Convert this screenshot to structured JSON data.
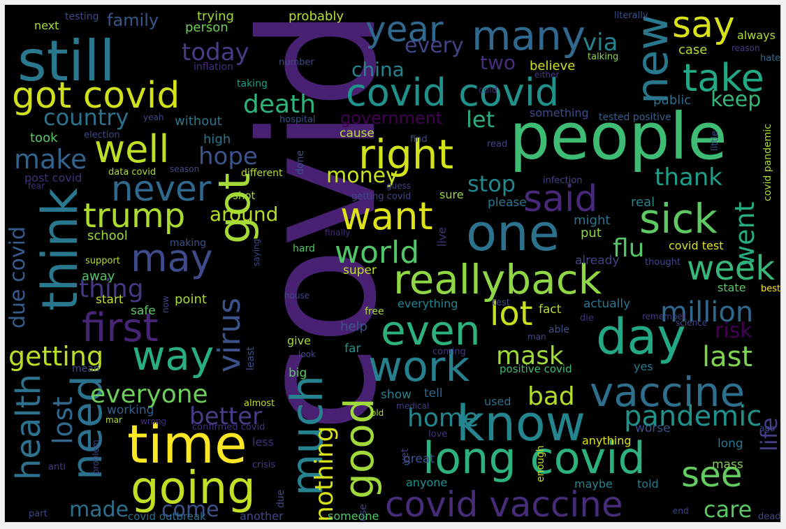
{
  "wordcloud": {
    "background": "#000000",
    "palette": "viridis",
    "words": [
      {
        "text": "covid",
        "color": "#482173"
      },
      {
        "text": "people",
        "color": "#3fbc73"
      },
      {
        "text": "still",
        "color": "#2a788e"
      },
      {
        "text": "many",
        "color": "#31688e"
      },
      {
        "text": "year",
        "color": "#31688e"
      },
      {
        "text": "say",
        "color": "#d8e219"
      },
      {
        "text": "new",
        "color": "#2a788e"
      },
      {
        "text": "got covid",
        "color": "#d0e11c"
      },
      {
        "text": "covid covid",
        "color": "#21918c"
      },
      {
        "text": "take",
        "color": "#22a884"
      },
      {
        "text": "today",
        "color": "#433e85"
      },
      {
        "text": "every",
        "color": "#414487"
      },
      {
        "text": "via",
        "color": "#26828e"
      },
      {
        "text": "china",
        "color": "#25848e"
      },
      {
        "text": "two",
        "color": "#472d7b"
      },
      {
        "text": "death",
        "color": "#2fb47c"
      },
      {
        "text": "country",
        "color": "#2c728e"
      },
      {
        "text": "keep",
        "color": "#35b779"
      },
      {
        "text": "government",
        "color": "#440154"
      },
      {
        "text": "let",
        "color": "#29af7f"
      },
      {
        "text": "well",
        "color": "#bddf26"
      },
      {
        "text": "right",
        "color": "#d2e21b"
      },
      {
        "text": "think",
        "color": "#2a788e"
      },
      {
        "text": "make",
        "color": "#33638d"
      },
      {
        "text": "hope",
        "color": "#3b528b"
      },
      {
        "text": "never",
        "color": "#31688e"
      },
      {
        "text": "money",
        "color": "#cae11f"
      },
      {
        "text": "stop",
        "color": "#24868e"
      },
      {
        "text": "thank",
        "color": "#1f9e89"
      },
      {
        "text": "trump",
        "color": "#addc30"
      },
      {
        "text": "got",
        "color": "#a5db36"
      },
      {
        "text": "want",
        "color": "#dde318"
      },
      {
        "text": "said",
        "color": "#482878"
      },
      {
        "text": "sick",
        "color": "#5ec962"
      },
      {
        "text": "one",
        "color": "#2c728e"
      },
      {
        "text": "around",
        "color": "#b5de2b"
      },
      {
        "text": "world",
        "color": "#52c569"
      },
      {
        "text": "may",
        "color": "#3e4a89"
      },
      {
        "text": "flu",
        "color": "#54c568"
      },
      {
        "text": "week",
        "color": "#37b878"
      },
      {
        "text": "went",
        "color": "#26ad81"
      },
      {
        "text": "reallyback",
        "color": "#8fd744"
      },
      {
        "text": "thing",
        "color": "#453882"
      },
      {
        "text": "due covid",
        "color": "#365c8d"
      },
      {
        "text": "first",
        "color": "#482475"
      },
      {
        "text": "virus",
        "color": "#3b528b"
      },
      {
        "text": "even",
        "color": "#2db27d"
      },
      {
        "text": "lot",
        "color": "#c8e020"
      },
      {
        "text": "million",
        "color": "#30698e"
      },
      {
        "text": "risk",
        "color": "#440154"
      },
      {
        "text": "day",
        "color": "#22a884"
      },
      {
        "text": "getting",
        "color": "#bade28"
      },
      {
        "text": "way",
        "color": "#28ae80"
      },
      {
        "text": "work",
        "color": "#27808e"
      },
      {
        "text": "mask",
        "color": "#a0da39"
      },
      {
        "text": "last",
        "color": "#7fd34e"
      },
      {
        "text": "health",
        "color": "#2c728e"
      },
      {
        "text": "need",
        "color": "#2c728e"
      },
      {
        "text": "everyone",
        "color": "#6ccd5a"
      },
      {
        "text": "bad",
        "color": "#b2dd2d"
      },
      {
        "text": "vaccine",
        "color": "#2e6f8e"
      },
      {
        "text": "lost",
        "color": "#31688e"
      },
      {
        "text": "better",
        "color": "#433e85"
      },
      {
        "text": "home",
        "color": "#24868e"
      },
      {
        "text": "pandemic",
        "color": "#21918c"
      },
      {
        "text": "know",
        "color": "#25858e"
      },
      {
        "text": "time",
        "color": "#fde725"
      },
      {
        "text": "much",
        "color": "#26828e"
      },
      {
        "text": "good",
        "color": "#9fda3a"
      },
      {
        "text": "going",
        "color": "#c2df23"
      },
      {
        "text": "long covid",
        "color": "#2db27d"
      },
      {
        "text": "see",
        "color": "#63cb5f"
      },
      {
        "text": "life",
        "color": "#433e85"
      },
      {
        "text": "nothing",
        "color": "#d8e219"
      },
      {
        "text": "made",
        "color": "#2d708e"
      },
      {
        "text": "come",
        "color": "#3a538b"
      },
      {
        "text": "covid vaccine",
        "color": "#472c7a"
      },
      {
        "text": "care",
        "color": "#5ac864"
      },
      {
        "text": "family",
        "color": "#39568c"
      },
      {
        "text": "testing",
        "color": "#3e4a89"
      },
      {
        "text": "trying",
        "color": "#a2da37"
      },
      {
        "text": "probably",
        "color": "#b8de29"
      },
      {
        "text": "literally",
        "color": "#3b528b"
      },
      {
        "text": "next",
        "color": "#a8db34"
      },
      {
        "text": "person",
        "color": "#70cf57"
      },
      {
        "text": "always",
        "color": "#b0dd2f"
      },
      {
        "text": "reason",
        "color": "#433e85"
      },
      {
        "text": "case",
        "color": "#b2dd2d"
      },
      {
        "text": "hate",
        "color": "#2e6e8e"
      },
      {
        "text": "inflation",
        "color": "#472d7b"
      },
      {
        "text": "number",
        "color": "#3e4989"
      },
      {
        "text": "talking",
        "color": "#8bd646"
      },
      {
        "text": "either",
        "color": "#433e85"
      },
      {
        "text": "believe",
        "color": "#cde11d"
      },
      {
        "text": "taking",
        "color": "#1fa088"
      },
      {
        "text": "cold",
        "color": "#472d7b"
      },
      {
        "text": "public",
        "color": "#2e6e8e"
      },
      {
        "text": "something",
        "color": "#3d4d8a"
      },
      {
        "text": "without",
        "color": "#2a768e"
      },
      {
        "text": "yeah",
        "color": "#3e4989"
      },
      {
        "text": "hospital",
        "color": "#3b528b"
      },
      {
        "text": "tested positive",
        "color": "#35608d"
      },
      {
        "text": "election",
        "color": "#3e4989"
      },
      {
        "text": "took",
        "color": "#5ac864"
      },
      {
        "text": "high",
        "color": "#2a788e"
      },
      {
        "text": "cause",
        "color": "#bade28"
      },
      {
        "text": "find",
        "color": "#3b528b"
      },
      {
        "text": "read",
        "color": "#404688"
      },
      {
        "text": "little",
        "color": "#3b528b"
      },
      {
        "text": "covid pandemic",
        "color": "#a8db34"
      },
      {
        "text": "post covid",
        "color": "#46307e"
      },
      {
        "text": "data covid",
        "color": "#addc30"
      },
      {
        "text": "season",
        "color": "#3e4a89"
      },
      {
        "text": "different",
        "color": "#b2dd2d"
      },
      {
        "text": "done",
        "color": "#3b528b"
      },
      {
        "text": "guess",
        "color": "#404688"
      },
      {
        "text": "infection",
        "color": "#404688"
      },
      {
        "text": "getting covid",
        "color": "#3e4989"
      },
      {
        "text": "fear",
        "color": "#472d7b"
      },
      {
        "text": "shot",
        "color": "#a0da39"
      },
      {
        "text": "sure",
        "color": "#98d83e"
      },
      {
        "text": "please",
        "color": "#2a788e"
      },
      {
        "text": "real",
        "color": "#25848e"
      },
      {
        "text": "might",
        "color": "#2c728e"
      },
      {
        "text": "school",
        "color": "#a0da39"
      },
      {
        "text": "making",
        "color": "#3b528b"
      },
      {
        "text": "saying",
        "color": "#3e4989"
      },
      {
        "text": "finally",
        "color": "#472d7b"
      },
      {
        "text": "put",
        "color": "#90d743"
      },
      {
        "text": "covid test",
        "color": "#d8e219"
      },
      {
        "text": "hard",
        "color": "#54c568"
      },
      {
        "text": "live",
        "color": "#46307e"
      },
      {
        "text": "already",
        "color": "#414487"
      },
      {
        "text": "thought",
        "color": "#3e4989"
      },
      {
        "text": "support",
        "color": "#b2dd2d"
      },
      {
        "text": "away",
        "color": "#54c568"
      },
      {
        "text": "super",
        "color": "#c2df23"
      },
      {
        "text": "state",
        "color": "#5ac864"
      },
      {
        "text": "best",
        "color": "#fde725"
      },
      {
        "text": "now",
        "color": "#3e4989"
      },
      {
        "text": "point",
        "color": "#a8db34"
      },
      {
        "text": "house",
        "color": "#404688"
      },
      {
        "text": "start",
        "color": "#c2df23"
      },
      {
        "text": "safe",
        "color": "#5ec962"
      },
      {
        "text": "free",
        "color": "#a8db34"
      },
      {
        "text": "everything",
        "color": "#25848e"
      },
      {
        "text": "test",
        "color": "#3e4989"
      },
      {
        "text": "fact",
        "color": "#b2dd2d"
      },
      {
        "text": "actually",
        "color": "#2a768e"
      },
      {
        "text": "remember",
        "color": "#433e85"
      },
      {
        "text": "help",
        "color": "#3b528b"
      },
      {
        "text": "die",
        "color": "#472d7b"
      },
      {
        "text": "science",
        "color": "#404688"
      },
      {
        "text": "able",
        "color": "#3b528b"
      },
      {
        "text": "man",
        "color": "#3e4989"
      },
      {
        "text": "give",
        "color": "#a2da37"
      },
      {
        "text": "far",
        "color": "#21918c"
      },
      {
        "text": "least",
        "color": "#3b528b"
      },
      {
        "text": "look",
        "color": "#3e4a89"
      },
      {
        "text": "coming",
        "color": "#433e85"
      },
      {
        "text": "big",
        "color": "#5ec962"
      },
      {
        "text": "mean",
        "color": "#3d4d8a"
      },
      {
        "text": "positive covid",
        "color": "#3fbc73"
      },
      {
        "text": "yes",
        "color": "#2a788e"
      },
      {
        "text": "working",
        "color": "#35608d"
      },
      {
        "text": "mar",
        "color": "#b2dd2d"
      },
      {
        "text": "wrong",
        "color": "#472d7b"
      },
      {
        "text": "almost",
        "color": "#c2df23"
      },
      {
        "text": "show",
        "color": "#26828e"
      },
      {
        "text": "tell",
        "color": "#31688e"
      },
      {
        "text": "medical",
        "color": "#433e85"
      },
      {
        "text": "old",
        "color": "#a8db34"
      },
      {
        "text": "used",
        "color": "#2e6e8e"
      },
      {
        "text": "love",
        "color": "#46307e"
      },
      {
        "text": "worse",
        "color": "#3a538b"
      },
      {
        "text": "ago",
        "color": "#3e4989"
      },
      {
        "text": "confirmed covid",
        "color": "#46307e"
      },
      {
        "text": "problem",
        "color": "#3e4989"
      },
      {
        "text": "less",
        "color": "#472d7b"
      },
      {
        "text": "anything",
        "color": "#dde318"
      },
      {
        "text": "long",
        "color": "#2a768e"
      },
      {
        "text": "anti",
        "color": "#433e85"
      },
      {
        "text": "crisis",
        "color": "#433e85"
      },
      {
        "text": "yet",
        "color": "#433e85"
      },
      {
        "text": "great",
        "color": "#39568c"
      },
      {
        "text": "enough",
        "color": "#c2df23"
      },
      {
        "text": "mass",
        "color": "#7fd34e"
      },
      {
        "text": "maybe",
        "color": "#25848e"
      },
      {
        "text": "told",
        "color": "#2a788e"
      },
      {
        "text": "part",
        "color": "#3e4989"
      },
      {
        "text": "due",
        "color": "#3e4a89"
      },
      {
        "text": "anyone",
        "color": "#21918c"
      },
      {
        "text": "end",
        "color": "#404688"
      },
      {
        "text": "dead",
        "color": "#3e4989"
      },
      {
        "text": "covid outbreak",
        "color": "#2e6f8e"
      },
      {
        "text": "another",
        "color": "#3e4989"
      },
      {
        "text": "someone",
        "color": "#54c568"
      },
      {
        "text": "use",
        "color": "#3e4989"
      }
    ]
  }
}
